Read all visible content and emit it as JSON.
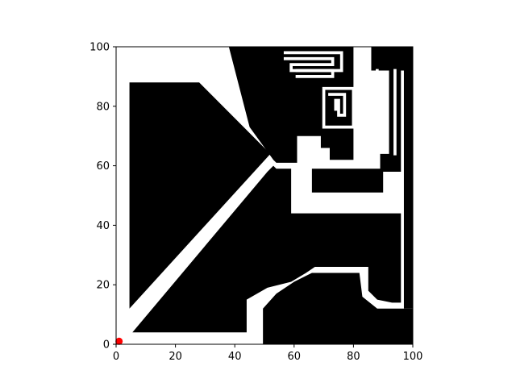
{
  "chart_data": {
    "type": "heatmap",
    "title": "",
    "xlabel": "",
    "ylabel": "",
    "xlim": [
      0,
      100
    ],
    "ylim": [
      0,
      100
    ],
    "xticks": [
      "0",
      "20",
      "40",
      "60",
      "80",
      "100"
    ],
    "yticks": [
      "0",
      "20",
      "40",
      "60",
      "80",
      "100"
    ],
    "grid": false,
    "legend": "none",
    "colors": {
      "free": "#ffffff",
      "obstacle": "#000000",
      "marker": "#ff0000"
    },
    "obstacles": [
      {
        "name": "left-triangle",
        "points": [
          [
            4.5,
            88
          ],
          [
            28,
            88
          ],
          [
            52,
            64
          ],
          [
            4.5,
            12
          ]
        ]
      },
      {
        "name": "center-triangle",
        "points": [
          [
            5.5,
            4
          ],
          [
            44,
            4
          ],
          [
            44,
            15
          ],
          [
            51,
            19
          ],
          [
            59,
            21
          ],
          [
            64,
            24
          ],
          [
            67,
            26
          ],
          [
            85,
            26
          ],
          [
            85,
            18
          ],
          [
            88,
            15
          ],
          [
            93,
            14
          ],
          [
            96,
            14
          ],
          [
            96,
            44
          ],
          [
            59,
            44
          ],
          [
            59,
            59
          ],
          [
            54,
            59
          ],
          [
            53,
            60
          ],
          [
            51,
            58
          ]
        ]
      },
      {
        "name": "bottom-right-region",
        "points": [
          [
            49.5,
            0
          ],
          [
            100,
            0
          ],
          [
            100,
            12
          ],
          [
            88,
            12
          ],
          [
            83,
            16
          ],
          [
            82,
            24
          ],
          [
            66,
            24
          ],
          [
            60,
            21
          ],
          [
            54,
            17
          ],
          [
            49.5,
            12
          ]
        ]
      },
      {
        "name": "top-diagonal-region",
        "points": [
          [
            38,
            100
          ],
          [
            100,
            100
          ],
          [
            100,
            92
          ],
          [
            96,
            92
          ],
          [
            96,
            58
          ],
          [
            89,
            58
          ],
          [
            89,
            64
          ],
          [
            92,
            64
          ],
          [
            92,
            92
          ],
          [
            86,
            92
          ],
          [
            86,
            100
          ],
          [
            80,
            100
          ],
          [
            80,
            62
          ],
          [
            72,
            62
          ],
          [
            72,
            66
          ],
          [
            69,
            66
          ],
          [
            69,
            70
          ],
          [
            61,
            70
          ],
          [
            61,
            61
          ],
          [
            54,
            61
          ],
          [
            53,
            62
          ],
          [
            45,
            73
          ]
        ]
      },
      {
        "name": "upper-right-block",
        "points": [
          [
            66,
            59
          ],
          [
            90,
            59
          ],
          [
            90,
            51
          ],
          [
            66,
            51
          ]
        ]
      },
      {
        "name": "right-column",
        "points": [
          [
            97,
            92
          ],
          [
            100,
            92
          ],
          [
            100,
            12
          ],
          [
            97,
            12
          ]
        ]
      }
    ],
    "free_paths": [
      {
        "name": "maze-path-a",
        "points": [
          [
            57,
            96
          ],
          [
            73,
            96
          ],
          [
            73,
            94
          ],
          [
            59,
            94
          ],
          [
            59,
            92
          ],
          [
            76,
            92
          ],
          [
            76,
            98
          ],
          [
            57,
            98
          ]
        ],
        "width": 1
      },
      {
        "name": "maze-path-b",
        "points": [
          [
            61,
            92
          ],
          [
            73,
            92
          ],
          [
            73,
            90
          ],
          [
            61,
            90
          ]
        ],
        "width": 1
      },
      {
        "name": "spiral-path",
        "points": [
          [
            72,
            84
          ],
          [
            77,
            84
          ],
          [
            77,
            77
          ],
          [
            75,
            77
          ],
          [
            75,
            82
          ],
          [
            74,
            82
          ],
          [
            74,
            79
          ]
        ],
        "width": 1
      },
      {
        "name": "spiral-frame",
        "points": [
          [
            70,
            86
          ],
          [
            80,
            86
          ],
          [
            80,
            73
          ],
          [
            70,
            73
          ],
          [
            70,
            86
          ]
        ],
        "width": 1
      },
      {
        "name": "right-gap",
        "points": [
          [
            88,
            92
          ],
          [
            88,
            70
          ]
        ],
        "width": 1
      },
      {
        "name": "right-gap-2",
        "points": [
          [
            94,
            92
          ],
          [
            94,
            64
          ]
        ],
        "width": 1
      }
    ],
    "marker": {
      "x": 1,
      "y": 1
    }
  }
}
